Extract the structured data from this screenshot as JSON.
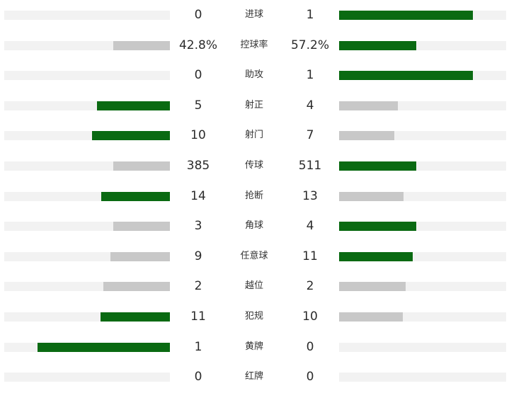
{
  "colors": {
    "leader_bar": "#0a6a12",
    "trailer_bar": "#c8c8c8",
    "track": "#f2f2f2",
    "text": "#2b2b2b"
  },
  "stats": [
    {
      "label": "进球",
      "left": "0",
      "right": "1",
      "left_share": 0,
      "right_share": 0.8,
      "leader": "right"
    },
    {
      "label": "控球率",
      "left": "42.8%",
      "right": "57.2%",
      "left_share": 0.34,
      "right_share": 0.46,
      "leader": "right"
    },
    {
      "label": "助攻",
      "left": "0",
      "right": "1",
      "left_share": 0,
      "right_share": 0.8,
      "leader": "right"
    },
    {
      "label": "射正",
      "left": "5",
      "right": "4",
      "left_share": 0.44,
      "right_share": 0.35,
      "leader": "left"
    },
    {
      "label": "射门",
      "left": "10",
      "right": "7",
      "left_share": 0.47,
      "right_share": 0.33,
      "leader": "left"
    },
    {
      "label": "传球",
      "left": "385",
      "right": "511",
      "left_share": 0.34,
      "right_share": 0.46,
      "leader": "right"
    },
    {
      "label": "抢断",
      "left": "14",
      "right": "13",
      "left_share": 0.415,
      "right_share": 0.385,
      "leader": "left"
    },
    {
      "label": "角球",
      "left": "3",
      "right": "4",
      "left_share": 0.34,
      "right_share": 0.46,
      "leader": "right"
    },
    {
      "label": "任意球",
      "left": "9",
      "right": "11",
      "left_share": 0.36,
      "right_share": 0.44,
      "leader": "right"
    },
    {
      "label": "越位",
      "left": "2",
      "right": "2",
      "left_share": 0.4,
      "right_share": 0.4,
      "leader": "none"
    },
    {
      "label": "犯规",
      "left": "11",
      "right": "10",
      "left_share": 0.42,
      "right_share": 0.38,
      "leader": "left"
    },
    {
      "label": "黄牌",
      "left": "1",
      "right": "0",
      "left_share": 0.8,
      "right_share": 0,
      "leader": "left"
    },
    {
      "label": "红牌",
      "left": "0",
      "right": "0",
      "left_share": 0,
      "right_share": 0,
      "leader": "none"
    }
  ]
}
